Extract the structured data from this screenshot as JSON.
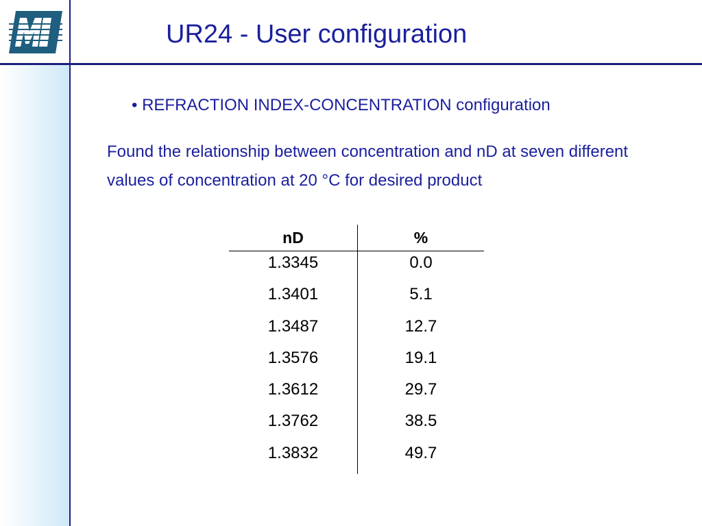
{
  "slide": {
    "title": "UR24 - User configuration",
    "bullet": "• REFRACTION INDEX-CONCENTRATION configuration",
    "description": "Found the relationship between concentration and nD at seven different values of concentration at 20 °C for desired product",
    "logo_icon": "m-logo-icon",
    "colors": {
      "title_text": "#1a1f9c",
      "rule": "#1a1f7a",
      "logo_bg": "#1f5e7e"
    }
  },
  "table": {
    "headers": [
      "nD",
      "%"
    ],
    "rows": [
      [
        "1.3345",
        "0.0"
      ],
      [
        "1.3401",
        "5.1"
      ],
      [
        "1.3487",
        "12.7"
      ],
      [
        "1.3576",
        "19.1"
      ],
      [
        "1.3612",
        "29.7"
      ],
      [
        "1.3762",
        "38.5"
      ],
      [
        "1.3832",
        "49.7"
      ]
    ]
  }
}
